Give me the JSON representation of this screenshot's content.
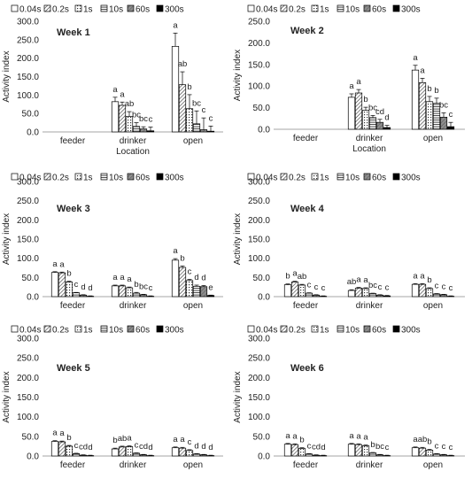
{
  "legend_labels": [
    "0.04s",
    "0.2s",
    "1s",
    "10s",
    "60s",
    "300s"
  ],
  "series_colors": [
    "#ffffff",
    "#ffffff",
    "#ffffff",
    "#ffffff",
    "#8c8c8c",
    "#000000"
  ],
  "series_patterns": [
    "none",
    "diag-dense",
    "dots",
    "hlines",
    "fill-gray",
    "fill-black"
  ],
  "chart_data": [
    {
      "type": "bar",
      "title": "Week 1",
      "ylabel": "Activity index",
      "xlabel": "Location",
      "categories": [
        "feeder",
        "drinker",
        "open"
      ],
      "ylim": [
        0,
        300
      ],
      "yticks": [
        "0.0",
        "50.0",
        "100.0",
        "150.0",
        "200.0",
        "250.0",
        "300.0"
      ],
      "series": [
        {
          "name": "0.04s",
          "values": [
            0,
            82,
            232
          ],
          "errors": [
            0,
            12,
            36
          ],
          "letters": [
            "",
            "a",
            "a"
          ]
        },
        {
          "name": "0.2s",
          "values": [
            0,
            72,
            128
          ],
          "errors": [
            0,
            9,
            35
          ],
          "letters": [
            "",
            "a",
            "ab"
          ]
        },
        {
          "name": "1s",
          "values": [
            0,
            42,
            63
          ],
          "errors": [
            0,
            13,
            38
          ],
          "letters": [
            "",
            "ab",
            "b"
          ]
        },
        {
          "name": "10s",
          "values": [
            0,
            15,
            22
          ],
          "errors": [
            0,
            10,
            35
          ],
          "letters": [
            "",
            "bc",
            "bc"
          ]
        },
        {
          "name": "60s",
          "values": [
            0,
            8,
            6
          ],
          "errors": [
            0,
            6,
            32
          ],
          "letters": [
            "",
            "bc",
            "c"
          ]
        },
        {
          "name": "300s",
          "values": [
            0,
            3,
            2
          ],
          "errors": [
            0,
            10,
            14
          ],
          "letters": [
            "",
            "c",
            "c"
          ]
        }
      ]
    },
    {
      "type": "bar",
      "title": "Week 2",
      "ylabel": "Activity index",
      "xlabel": "Location",
      "categories": [
        "feeder",
        "drinker",
        "open"
      ],
      "ylim": [
        0,
        250
      ],
      "yticks": [
        "0.0",
        "50.0",
        "100.0",
        "150.0",
        "200.0",
        "250.0"
      ],
      "series": [
        {
          "name": "0.04s",
          "values": [
            0,
            74,
            137
          ],
          "errors": [
            0,
            8,
            11
          ],
          "letters": [
            "",
            "a",
            "a"
          ]
        },
        {
          "name": "0.2s",
          "values": [
            0,
            84,
            108
          ],
          "errors": [
            0,
            8,
            10
          ],
          "letters": [
            "",
            "a",
            "a"
          ]
        },
        {
          "name": "1s",
          "values": [
            0,
            44,
            64
          ],
          "errors": [
            0,
            7,
            12
          ],
          "letters": [
            "",
            "b",
            "b"
          ]
        },
        {
          "name": "10s",
          "values": [
            0,
            27,
            60
          ],
          "errors": [
            0,
            5,
            12
          ],
          "letters": [
            "",
            "bc",
            "b"
          ]
        },
        {
          "name": "60s",
          "values": [
            0,
            16,
            28
          ],
          "errors": [
            0,
            7,
            10
          ],
          "letters": [
            "",
            "cd",
            "bc"
          ]
        },
        {
          "name": "300s",
          "values": [
            0,
            4,
            6
          ],
          "errors": [
            0,
            5,
            10
          ],
          "letters": [
            "",
            "d",
            "c"
          ]
        }
      ]
    },
    {
      "type": "bar",
      "title": "Week 3",
      "ylabel": "Activity index",
      "xlabel": "",
      "categories": [
        "feeder",
        "drinker",
        "open"
      ],
      "ylim": [
        0,
        300
      ],
      "yticks": [
        "0.0",
        "50.0",
        "100.0",
        "150.0",
        "200.0",
        "250.0",
        "300.0"
      ],
      "series": [
        {
          "name": "0.04s",
          "values": [
            63,
            28,
            95
          ],
          "errors": [
            2,
            2,
            4
          ],
          "letters": [
            "a",
            "a",
            "a"
          ]
        },
        {
          "name": "0.2s",
          "values": [
            62,
            28,
            76
          ],
          "errors": [
            2,
            2,
            4
          ],
          "letters": [
            "a",
            "a",
            "b"
          ]
        },
        {
          "name": "1s",
          "values": [
            38,
            23,
            42
          ],
          "errors": [
            2,
            2,
            3
          ],
          "letters": [
            "b",
            "a",
            "c"
          ]
        },
        {
          "name": "10s",
          "values": [
            10,
            9,
            27
          ],
          "errors": [
            1,
            2,
            3
          ],
          "letters": [
            "c",
            "b",
            "d"
          ]
        },
        {
          "name": "60s",
          "values": [
            4,
            5,
            26
          ],
          "errors": [
            1,
            1,
            3
          ],
          "letters": [
            "d",
            "bc",
            "d"
          ]
        },
        {
          "name": "300s",
          "values": [
            1,
            1,
            3
          ],
          "errors": [
            1,
            1,
            1
          ],
          "letters": [
            "d",
            "c",
            "e"
          ]
        }
      ]
    },
    {
      "type": "bar",
      "title": "Week 4",
      "ylabel": "Activity index",
      "xlabel": "",
      "categories": [
        "feeder",
        "drinker",
        "open"
      ],
      "ylim": [
        0,
        300
      ],
      "yticks": [
        "0.0",
        "50.0",
        "100.0",
        "150.0",
        "200.0",
        "250.0",
        "300.0"
      ],
      "series": [
        {
          "name": "0.04s",
          "values": [
            31,
            16,
            32
          ],
          "errors": [
            2,
            2,
            2
          ],
          "letters": [
            "b",
            "ab",
            "a"
          ]
        },
        {
          "name": "0.2s",
          "values": [
            38,
            22,
            32
          ],
          "errors": [
            2,
            2,
            2
          ],
          "letters": [
            "a",
            "a",
            "a"
          ]
        },
        {
          "name": "1s",
          "values": [
            30,
            21,
            21
          ],
          "errors": [
            2,
            2,
            2
          ],
          "letters": [
            "ab",
            "a",
            "b"
          ]
        },
        {
          "name": "10s",
          "values": [
            9,
            8,
            7
          ],
          "errors": [
            1,
            1,
            1
          ],
          "letters": [
            "c",
            "bc",
            "c"
          ]
        },
        {
          "name": "60s",
          "values": [
            4,
            4,
            5
          ],
          "errors": [
            1,
            1,
            1
          ],
          "letters": [
            "c",
            "c",
            "c"
          ]
        },
        {
          "name": "300s",
          "values": [
            1,
            2,
            1
          ],
          "errors": [
            1,
            1,
            1
          ],
          "letters": [
            "c",
            "c",
            "c"
          ]
        }
      ]
    },
    {
      "type": "bar",
      "title": "Week 5",
      "ylabel": "Activity index",
      "xlabel": "",
      "categories": [
        "feeder",
        "drinker",
        "open"
      ],
      "ylim": [
        0,
        300
      ],
      "yticks": [
        "0.0",
        "50.0",
        "100.0",
        "150.0",
        "200.0",
        "250.0",
        "300.0"
      ],
      "series": [
        {
          "name": "0.04s",
          "values": [
            37,
            18,
            21
          ],
          "errors": [
            2,
            2,
            2
          ],
          "letters": [
            "a",
            "b",
            "a"
          ]
        },
        {
          "name": "0.2s",
          "values": [
            36,
            23,
            20
          ],
          "errors": [
            2,
            2,
            2
          ],
          "letters": [
            "a",
            "ab",
            "a"
          ]
        },
        {
          "name": "1s",
          "values": [
            25,
            24,
            14
          ],
          "errors": [
            2,
            2,
            2
          ],
          "letters": [
            "b",
            "a",
            "c"
          ]
        },
        {
          "name": "10s",
          "values": [
            6,
            7,
            5
          ],
          "errors": [
            1,
            1,
            1
          ],
          "letters": [
            "c",
            "c",
            "d"
          ]
        },
        {
          "name": "60s",
          "values": [
            2,
            3,
            3
          ],
          "errors": [
            1,
            1,
            1
          ],
          "letters": [
            "cd",
            "cd",
            "d"
          ]
        },
        {
          "name": "300s",
          "values": [
            1,
            1,
            1
          ],
          "errors": [
            1,
            1,
            1
          ],
          "letters": [
            "d",
            "d",
            "d"
          ]
        }
      ]
    },
    {
      "type": "bar",
      "title": "Week 6",
      "ylabel": "Activity index",
      "xlabel": "",
      "categories": [
        "feeder",
        "drinker",
        "open"
      ],
      "ylim": [
        0,
        300
      ],
      "yticks": [
        "0.0",
        "50.0",
        "100.0",
        "150.0",
        "200.0",
        "250.0",
        "300.0"
      ],
      "series": [
        {
          "name": "0.04s",
          "values": [
            30,
            30,
            21
          ],
          "errors": [
            2,
            2,
            2
          ],
          "letters": [
            "a",
            "a",
            "a"
          ]
        },
        {
          "name": "0.2s",
          "values": [
            29,
            29,
            20
          ],
          "errors": [
            2,
            2,
            2
          ],
          "letters": [
            "a",
            "a",
            "ab"
          ]
        },
        {
          "name": "1s",
          "values": [
            19,
            26,
            15
          ],
          "errors": [
            2,
            2,
            2
          ],
          "letters": [
            "b",
            "a",
            "b"
          ]
        },
        {
          "name": "10s",
          "values": [
            5,
            8,
            5
          ],
          "errors": [
            1,
            1,
            1
          ],
          "letters": [
            "c",
            "b",
            "c"
          ]
        },
        {
          "name": "60s",
          "values": [
            2,
            3,
            3
          ],
          "errors": [
            1,
            1,
            1
          ],
          "letters": [
            "cd",
            "bc",
            "c"
          ]
        },
        {
          "name": "300s",
          "values": [
            1,
            1,
            1
          ],
          "errors": [
            1,
            1,
            1
          ],
          "letters": [
            "d",
            "c",
            "c"
          ]
        }
      ]
    }
  ]
}
